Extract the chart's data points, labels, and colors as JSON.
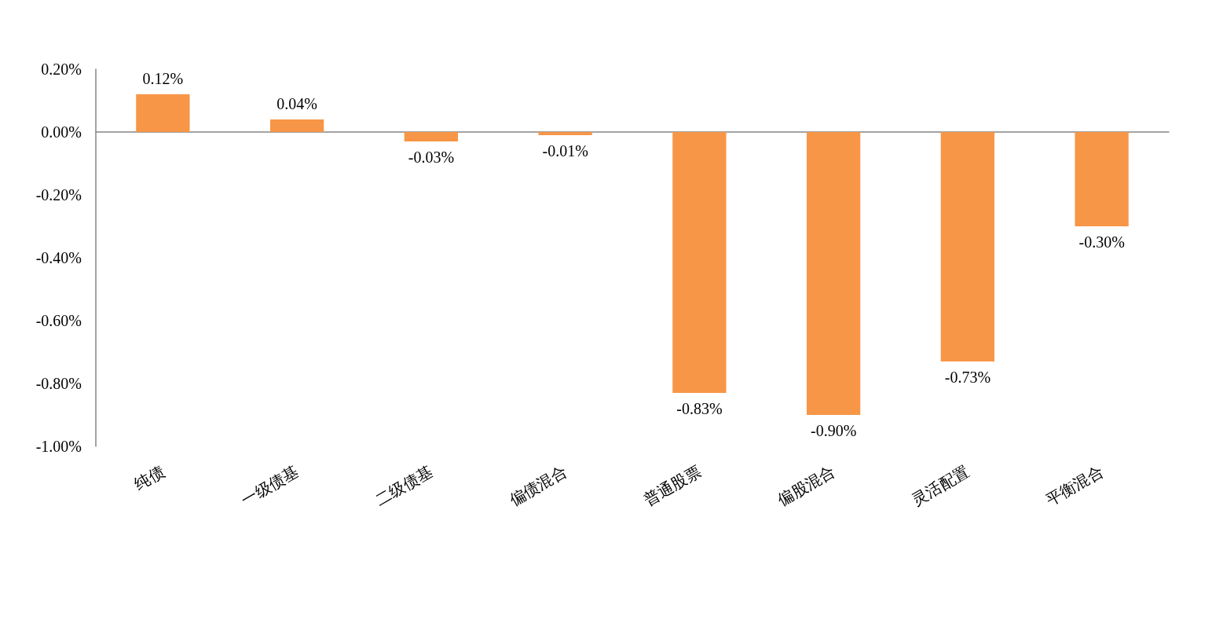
{
  "chart_data": {
    "type": "bar",
    "categories": [
      "纯债",
      "一级债基",
      "二级债基",
      "偏债混合",
      "普通股票",
      "偏股混合",
      "灵活配置",
      "平衡混合"
    ],
    "values": [
      0.12,
      0.04,
      -0.03,
      -0.01,
      -0.83,
      -0.9,
      -0.73,
      -0.3
    ],
    "color": "#f79646",
    "value_labels": [
      "0.12%",
      "0.04%",
      "-0.03%",
      "-0.01%",
      "-0.83%",
      "-0.90%",
      "-0.73%",
      "-0.30%"
    ],
    "ylim": [
      -1.0,
      0.2
    ],
    "yticks": [
      {
        "value": -1.0,
        "label": "-1.00%"
      },
      {
        "value": -0.8,
        "label": "-0.80%"
      },
      {
        "value": -0.6,
        "label": "-0.60%"
      },
      {
        "value": -0.4,
        "label": "-0.40%"
      },
      {
        "value": -0.2,
        "label": "-0.20%"
      },
      {
        "value": 0,
        "label": "0.00%"
      },
      {
        "value": 0.2,
        "label": "0.20%"
      }
    ],
    "orientation": "vertical"
  }
}
